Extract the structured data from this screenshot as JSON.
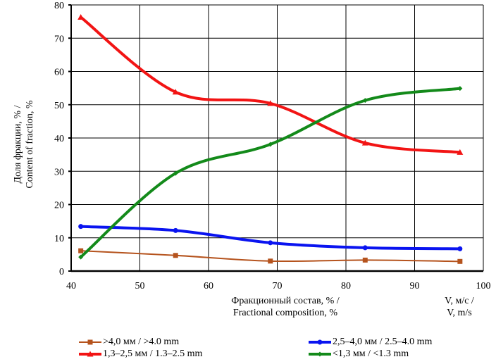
{
  "chart_data": {
    "type": "line",
    "smoothed": true,
    "xlabel_line1": "Фракционный состав, % /",
    "xlabel_line2": "Fractional composition, %",
    "xlabel_right_line1": "V, м/с /",
    "xlabel_right_line2": "V, m/s",
    "ylabel_line1": "Доля фракции, % /",
    "ylabel_line2": "Content of fraction, %",
    "xlim": [
      40,
      100
    ],
    "ylim": [
      0,
      80
    ],
    "xticks": [
      40,
      50,
      60,
      70,
      80,
      90,
      100
    ],
    "yticks": [
      0,
      10,
      20,
      30,
      40,
      50,
      60,
      70,
      80
    ],
    "grid": true,
    "legend_position": "bottom",
    "x": [
      41.4,
      55.2,
      69.0,
      82.8,
      96.6
    ],
    "series": [
      {
        "name": ">4,0 мм / >4.0 mm",
        "color": "#b5531d",
        "marker": "square",
        "values": [
          6.1,
          4.7,
          3.0,
          3.3,
          2.9
        ]
      },
      {
        "name": "2,5–4,0 мм / 2.5–4.0 mm",
        "color": "#0a14f0",
        "marker": "circle",
        "values": [
          13.4,
          12.2,
          8.5,
          7.0,
          6.7
        ]
      },
      {
        "name": "1,3–2,5 мм / 1.3–2.5 mm",
        "color": "#f21414",
        "marker": "triangle",
        "values": [
          76.3,
          53.8,
          50.4,
          38.5,
          35.7
        ]
      },
      {
        "name": "<1,3 мм / <1.3 mm",
        "color": "#138a1a",
        "marker": "diamond",
        "values": [
          4.2,
          29.4,
          38.1,
          51.3,
          54.9
        ]
      }
    ]
  }
}
